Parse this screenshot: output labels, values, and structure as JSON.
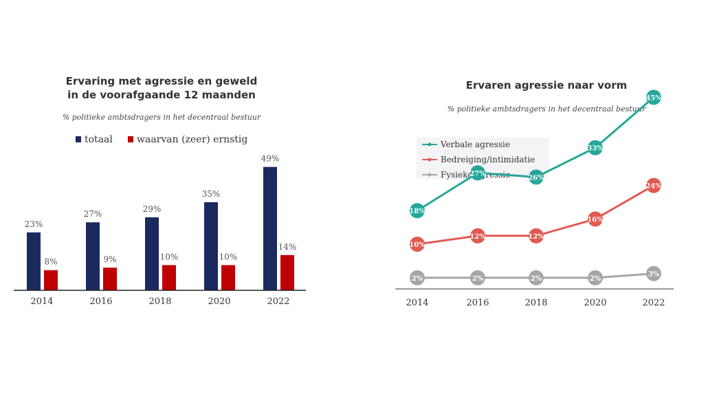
{
  "chart_data": [
    {
      "type": "bar",
      "title_line1": "Ervaring met agressie en geweld",
      "title_line2": "in de voorafgaande 12 maanden",
      "subtitle": "% politieke ambtsdragers in het decentraal bestuur",
      "categories": [
        "2014",
        "2016",
        "2018",
        "2020",
        "2022"
      ],
      "series": [
        {
          "name": "totaal",
          "values": [
            23,
            27,
            29,
            35,
            49
          ],
          "labels": [
            "23%",
            "27%",
            "29%",
            "35%",
            "49%"
          ],
          "color": "#1a2a5e"
        },
        {
          "name": "waarvan (zeer) ernstig",
          "values": [
            8,
            9,
            10,
            10,
            14
          ],
          "labels": [
            "8%",
            "9%",
            "10%",
            "10%",
            "14%"
          ],
          "color": "#c00000"
        }
      ],
      "ylim": [
        0,
        50
      ],
      "legend": "top"
    },
    {
      "type": "line",
      "title": "Ervaren agressie naar vorm",
      "subtitle": "% politieke ambtsdragers in het decentraal bestuur",
      "categories": [
        "2014",
        "2016",
        "2018",
        "2020",
        "2022"
      ],
      "series": [
        {
          "name": "Verbale agressie",
          "values": [
            18,
            27,
            26,
            33,
            45
          ],
          "labels": [
            "18%",
            "27%",
            "26%",
            "33%",
            "45%"
          ],
          "color": "#26a69a"
        },
        {
          "name": "Bedreiging/intimidatie",
          "values": [
            10,
            12,
            12,
            16,
            24
          ],
          "labels": [
            "10%",
            "12%",
            "12%",
            "16%",
            "24%"
          ],
          "color": "#e05a50"
        },
        {
          "name": "Fysieke agressie",
          "values": [
            2,
            2,
            2,
            2,
            3
          ],
          "labels": [
            "2%",
            "2%",
            "2%",
            "2%",
            "3%"
          ],
          "color": "#a6a6a6"
        }
      ],
      "ylim": [
        0,
        50
      ],
      "legend": "top-left"
    }
  ]
}
